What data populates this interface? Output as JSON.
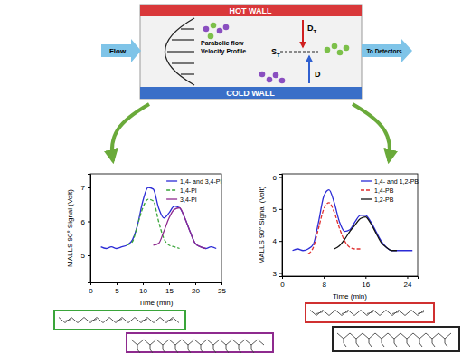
{
  "diagram": {
    "hot_wall": "HOT WALL",
    "cold_wall": "COLD WALL",
    "inlet": "Flow",
    "outlet": "To Detectors",
    "profile": [
      "Parabolic flow",
      "Velocity Profile"
    ],
    "thermal_diffusion": {
      "text": "D",
      "subscript": "T"
    },
    "soret": {
      "text": "S",
      "subscript": "T"
    },
    "diffusion": "D"
  },
  "chart_data": [
    {
      "type": "line",
      "x_label": "Time (min)",
      "y_label": "MALLS 90° Signal (Volt)",
      "x": [
        0,
        1,
        2,
        3,
        4,
        5,
        6,
        7,
        8,
        9,
        10,
        11,
        12,
        13,
        14,
        15,
        16,
        17,
        18,
        19,
        20,
        21,
        22,
        23,
        24,
        25
      ],
      "xlim": [
        0,
        25
      ],
      "xticks": [
        0,
        5,
        10,
        15,
        20,
        25
      ],
      "ylim": [
        4.2,
        7.4
      ],
      "yticks": [
        5,
        6,
        7
      ],
      "legend": "top-right",
      "series": [
        {
          "name": "1,4- and 3,4-PI",
          "color": "#2b2bd6",
          "line_style": "solid",
          "values": [
            null,
            null,
            5.25,
            5.2,
            5.25,
            5.2,
            5.25,
            5.3,
            5.45,
            5.9,
            6.6,
            7.0,
            6.95,
            6.4,
            6.1,
            6.25,
            6.45,
            6.4,
            6.1,
            5.7,
            5.35,
            5.25,
            5.2,
            5.25,
            5.2,
            null
          ]
        },
        {
          "name": "1,4-PI",
          "color": "#3aa53a",
          "line_style": "dashed",
          "values": [
            null,
            null,
            null,
            null,
            null,
            null,
            null,
            5.3,
            5.4,
            5.9,
            6.4,
            6.65,
            6.6,
            6.0,
            5.5,
            5.3,
            5.25,
            5.2,
            null,
            null,
            null,
            null,
            null,
            null,
            null,
            null
          ]
        },
        {
          "name": "3,4-PI",
          "color": "#8e2a8e",
          "line_style": "solid",
          "values": [
            null,
            null,
            null,
            null,
            null,
            null,
            null,
            null,
            null,
            null,
            null,
            null,
            5.3,
            5.35,
            5.7,
            6.1,
            6.35,
            6.4,
            6.1,
            5.7,
            5.35,
            5.25,
            5.2,
            null,
            null,
            null
          ]
        }
      ]
    },
    {
      "type": "line",
      "x_label": "Time (min)",
      "y_label": "MALLS 90° Signal (Volt)",
      "x": [
        0,
        1,
        2,
        3,
        4,
        5,
        6,
        7,
        8,
        9,
        10,
        11,
        12,
        13,
        14,
        15,
        16,
        17,
        18,
        19,
        20,
        21,
        22,
        23,
        24,
        25,
        26
      ],
      "xlim": [
        0,
        26
      ],
      "xticks": [
        0,
        8,
        16,
        24
      ],
      "ylim": [
        2.9,
        6.1
      ],
      "yticks": [
        3,
        4,
        5,
        6
      ],
      "legend": "top-right",
      "series": [
        {
          "name": "1,4- and 1,2-PB",
          "color": "#2b2bd6",
          "line_style": "solid",
          "values": [
            null,
            null,
            3.7,
            3.75,
            3.7,
            3.75,
            3.9,
            4.6,
            5.4,
            5.6,
            5.2,
            4.6,
            4.3,
            4.35,
            4.6,
            4.8,
            4.8,
            4.6,
            4.3,
            4.0,
            3.8,
            3.7,
            3.7,
            3.7,
            3.7,
            3.7,
            null
          ]
        },
        {
          "name": "1,4-PB",
          "color": "#e03030",
          "line_style": "dashed",
          "values": [
            null,
            null,
            null,
            null,
            null,
            3.6,
            3.8,
            4.4,
            5.0,
            5.2,
            4.9,
            4.4,
            4.0,
            3.8,
            3.75,
            3.75,
            null,
            null,
            null,
            null,
            null,
            null,
            null,
            null,
            null,
            null,
            null
          ]
        },
        {
          "name": "1,2-PB",
          "color": "#111111",
          "line_style": "solid",
          "values": [
            null,
            null,
            null,
            null,
            null,
            null,
            null,
            null,
            null,
            null,
            3.75,
            3.85,
            4.05,
            4.3,
            4.5,
            4.7,
            4.75,
            4.55,
            4.25,
            3.95,
            3.8,
            3.7,
            3.7,
            null,
            null,
            null,
            null
          ]
        }
      ]
    }
  ]
}
